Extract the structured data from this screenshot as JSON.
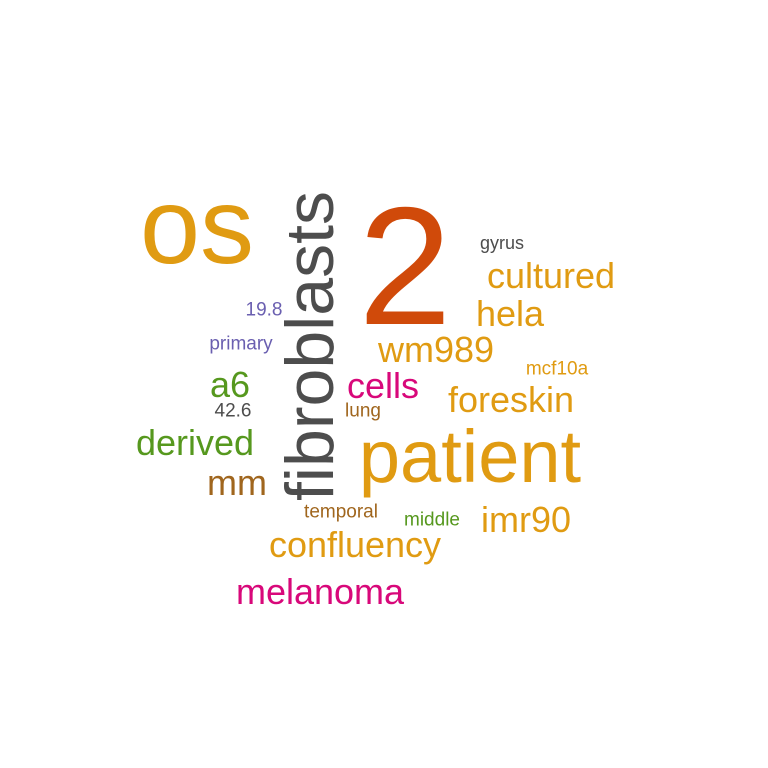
{
  "colors": {
    "orange": "#E09B12",
    "rust": "#D04A0A",
    "gray": "#4D4D4D",
    "purple": "#6A5FB0",
    "green": "#56981E",
    "brown": "#A0661E",
    "magenta": "#D8087A"
  },
  "words": [
    {
      "text": "os",
      "color": "#E09B12"
    },
    {
      "text": "2",
      "color": "#D04A0A"
    },
    {
      "text": "fibroblasts",
      "color": "#4D4D4D"
    },
    {
      "text": "patient",
      "color": "#E09B12"
    },
    {
      "text": "gyrus",
      "color": "#4D4D4D"
    },
    {
      "text": "cultured",
      "color": "#E09B12"
    },
    {
      "text": "hela",
      "color": "#E09B12"
    },
    {
      "text": "19.8",
      "color": "#6A5FB0"
    },
    {
      "text": "primary",
      "color": "#6A5FB0"
    },
    {
      "text": "wm989",
      "color": "#E09B12"
    },
    {
      "text": "mcf10a",
      "color": "#E09B12"
    },
    {
      "text": "a6",
      "color": "#56981E"
    },
    {
      "text": "cells",
      "color": "#D8087A"
    },
    {
      "text": "foreskin",
      "color": "#E09B12"
    },
    {
      "text": "42.6",
      "color": "#4D4D4D"
    },
    {
      "text": "lung",
      "color": "#A0661E"
    },
    {
      "text": "derived",
      "color": "#56981E"
    },
    {
      "text": "mm",
      "color": "#A0661E"
    },
    {
      "text": "temporal",
      "color": "#A0661E"
    },
    {
      "text": "middle",
      "color": "#56981E"
    },
    {
      "text": "imr90",
      "color": "#E09B12"
    },
    {
      "text": "confluency",
      "color": "#E09B12"
    },
    {
      "text": "melanoma",
      "color": "#D8087A"
    }
  ]
}
